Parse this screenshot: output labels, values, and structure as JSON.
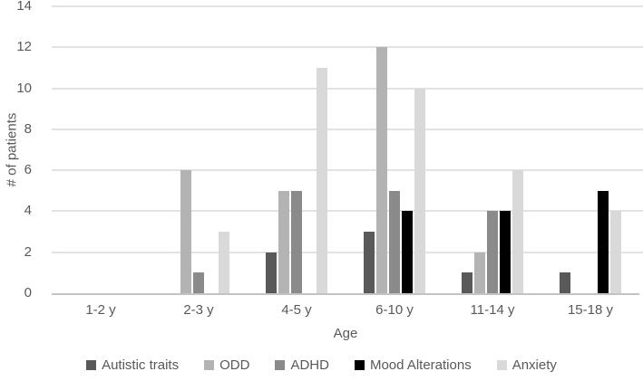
{
  "chart_data": {
    "type": "bar",
    "title": "",
    "xlabel": "Age",
    "ylabel": "# of patients",
    "categories": [
      "1-2 y",
      "2-3 y",
      "4-5 y",
      "6-10 y",
      "11-14 y",
      "15-18 y"
    ],
    "series": [
      {
        "name": "Autistic traits",
        "color": "#595959",
        "values": [
          0,
          0,
          2,
          3,
          1,
          1
        ]
      },
      {
        "name": "ODD",
        "color": "#b3b3b3",
        "values": [
          0,
          6,
          5,
          12,
          2,
          0
        ]
      },
      {
        "name": "ADHD",
        "color": "#8a8a8a",
        "values": [
          0,
          1,
          5,
          5,
          4,
          0
        ]
      },
      {
        "name": "Mood Alterations",
        "color": "#000000",
        "values": [
          0,
          0,
          0,
          4,
          4,
          5
        ]
      },
      {
        "name": "Anxiety",
        "color": "#d9d9d9",
        "values": [
          0,
          3,
          11,
          10,
          6,
          4
        ]
      }
    ],
    "ylim": [
      0,
      14
    ],
    "yticks": [
      0,
      2,
      4,
      6,
      8,
      10,
      12,
      14
    ],
    "grid": true,
    "legend_position": "bottom",
    "colors": {
      "axis_text": "#595959",
      "gridline": "#e2e2e2",
      "axis_line": "#c3c3c3",
      "background": "#ffffff"
    }
  }
}
